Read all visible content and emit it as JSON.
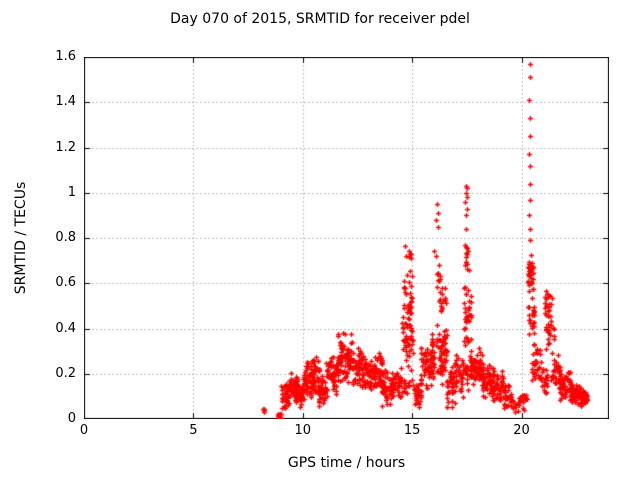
{
  "title": "Day 070 of 2015, SRMTID for receiver pdel",
  "chart_data": {
    "type": "scatter",
    "title": "Day 070 of 2015, SRMTID for receiver pdel",
    "xlabel": "GPS time / hours",
    "ylabel": "SRMTID / TECUs",
    "xlim": [
      0,
      24
    ],
    "ylim": [
      0,
      1.6
    ],
    "xticks": [
      0,
      5,
      10,
      15,
      20
    ],
    "xtick_labels": [
      "0",
      "5",
      "10",
      "15",
      "20"
    ],
    "yticks": [
      0,
      0.2,
      0.4,
      0.6,
      0.8,
      1.0,
      1.2,
      1.4,
      1.6
    ],
    "ytick_labels": [
      "0",
      "0.2",
      "0.4",
      "0.6",
      "0.8",
      "1",
      "1.2",
      "1.4",
      "1.6"
    ],
    "grid": true,
    "grid_color": "#aaaaaa",
    "border_color": "#000000",
    "legend": "none",
    "marker": {
      "shape": "plus",
      "color": "#ff0000",
      "size": 5,
      "stroke": 1.35
    },
    "seed": 7,
    "notable_points": [
      [
        16.12,
        0.95
      ],
      [
        16.16,
        0.91
      ],
      [
        16.1,
        0.88
      ],
      [
        16.18,
        0.85
      ],
      [
        17.45,
        1.03
      ],
      [
        17.5,
        1.02
      ],
      [
        17.47,
        1.0
      ],
      [
        17.52,
        0.98
      ],
      [
        17.43,
        0.96
      ],
      [
        17.49,
        0.93
      ],
      [
        17.46,
        0.9
      ],
      [
        20.37,
        1.57
      ],
      [
        20.38,
        1.51
      ],
      [
        20.36,
        1.41
      ],
      [
        20.38,
        1.33
      ],
      [
        20.37,
        1.25
      ],
      [
        20.36,
        1.17
      ],
      [
        20.38,
        1.12
      ],
      [
        20.37,
        1.04
      ],
      [
        20.39,
        0.97
      ],
      [
        20.36,
        0.9
      ],
      [
        20.38,
        0.84
      ],
      [
        20.37,
        0.79
      ]
    ],
    "clusters": [
      [
        8.17,
        8.27,
        0.02,
        0.07,
        4
      ],
      [
        8.84,
        8.92,
        0.0,
        0.035,
        7
      ],
      [
        8.93,
        9.0,
        0.0,
        0.03,
        5
      ],
      [
        9.0,
        9.4,
        0.04,
        0.16,
        45
      ],
      [
        9.35,
        9.75,
        0.07,
        0.21,
        48
      ],
      [
        9.7,
        10.05,
        0.04,
        0.16,
        38
      ],
      [
        10.0,
        10.45,
        0.08,
        0.26,
        52
      ],
      [
        10.4,
        10.75,
        0.1,
        0.28,
        42
      ],
      [
        10.7,
        11.1,
        0.05,
        0.2,
        42
      ],
      [
        11.05,
        11.65,
        0.1,
        0.3,
        55
      ],
      [
        11.6,
        12.3,
        0.15,
        0.4,
        80
      ],
      [
        12.25,
        12.8,
        0.12,
        0.35,
        55
      ],
      [
        12.75,
        13.3,
        0.1,
        0.3,
        50
      ],
      [
        13.25,
        13.65,
        0.12,
        0.33,
        42
      ],
      [
        13.6,
        14.1,
        0.05,
        0.22,
        46
      ],
      [
        14.05,
        14.5,
        0.08,
        0.25,
        42
      ],
      [
        14.5,
        15.1,
        0.08,
        0.2,
        14
      ],
      [
        14.55,
        15.05,
        0.2,
        0.55,
        55
      ],
      [
        14.6,
        15.0,
        0.5,
        0.68,
        16
      ],
      [
        14.65,
        14.95,
        0.68,
        0.79,
        7
      ],
      [
        15.05,
        15.45,
        0.05,
        0.2,
        32
      ],
      [
        15.4,
        15.9,
        0.12,
        0.35,
        46
      ],
      [
        15.85,
        16.1,
        0.15,
        0.4,
        26
      ],
      [
        16.0,
        16.3,
        0.45,
        0.78,
        13
      ],
      [
        16.1,
        16.6,
        0.15,
        0.45,
        62
      ],
      [
        16.25,
        16.55,
        0.45,
        0.6,
        13
      ],
      [
        16.55,
        17.0,
        0.05,
        0.25,
        40
      ],
      [
        16.95,
        17.35,
        0.08,
        0.3,
        36
      ],
      [
        17.4,
        17.6,
        0.6,
        0.88,
        14
      ],
      [
        17.35,
        17.7,
        0.3,
        0.6,
        36
      ],
      [
        17.4,
        17.75,
        0.12,
        0.3,
        22
      ],
      [
        17.7,
        18.25,
        0.12,
        0.33,
        60
      ],
      [
        18.2,
        18.7,
        0.08,
        0.26,
        50
      ],
      [
        18.65,
        19.2,
        0.06,
        0.22,
        50
      ],
      [
        19.15,
        19.55,
        0.04,
        0.16,
        30
      ],
      [
        19.5,
        19.9,
        0.02,
        0.1,
        15
      ],
      [
        19.85,
        20.25,
        0.03,
        0.14,
        18
      ],
      [
        20.3,
        20.55,
        0.55,
        0.76,
        36
      ],
      [
        20.3,
        20.6,
        0.35,
        0.55,
        22
      ],
      [
        20.45,
        20.9,
        0.15,
        0.35,
        32
      ],
      [
        20.85,
        21.2,
        0.1,
        0.25,
        22
      ],
      [
        21.05,
        21.4,
        0.42,
        0.6,
        22
      ],
      [
        21.1,
        21.5,
        0.28,
        0.45,
        20
      ],
      [
        21.35,
        21.8,
        0.12,
        0.3,
        36
      ],
      [
        21.75,
        22.25,
        0.08,
        0.22,
        46
      ],
      [
        22.2,
        22.75,
        0.06,
        0.17,
        60
      ],
      [
        22.7,
        23.05,
        0.05,
        0.13,
        36
      ]
    ]
  }
}
